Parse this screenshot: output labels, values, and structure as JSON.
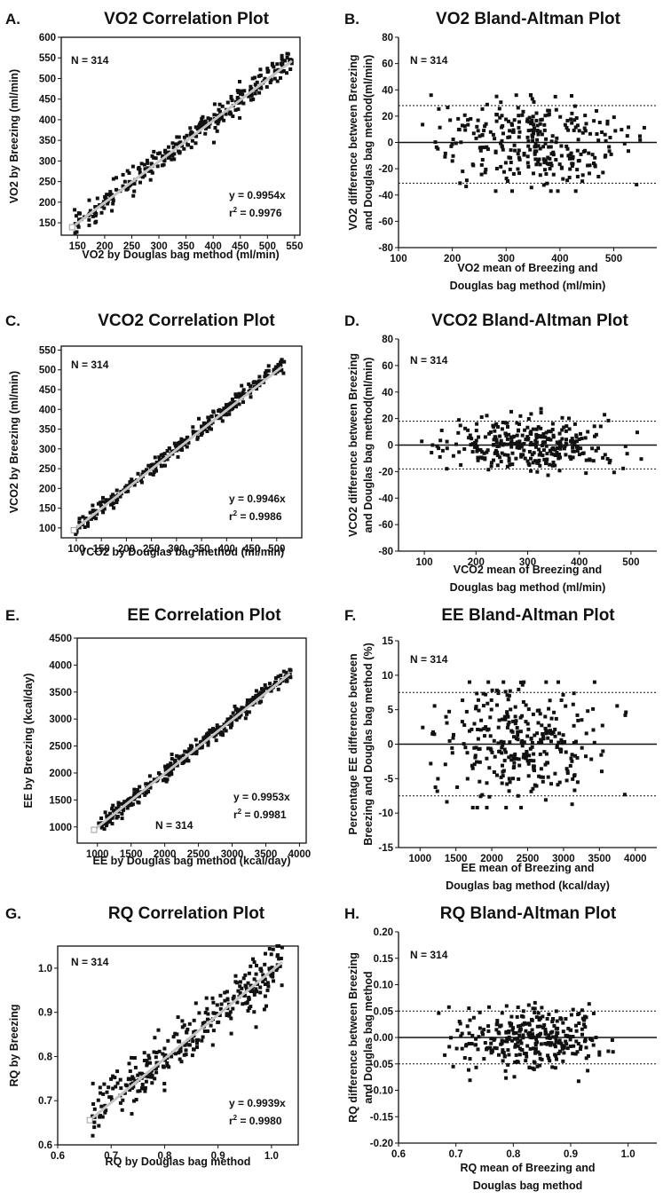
{
  "chart_data": [
    {
      "letter": "A.",
      "type": "scatter",
      "title": "VO2 Correlation Plot",
      "xlabel": [
        "VO2 by Douglas bag method (ml/min)"
      ],
      "ylabel": [
        "VO2 by Breezing (ml/min)"
      ],
      "xlim": [
        120,
        560
      ],
      "ylim": [
        120,
        600
      ],
      "xticks": [
        150,
        200,
        250,
        300,
        350,
        400,
        450,
        500,
        550
      ],
      "yticks": [
        150,
        200,
        250,
        300,
        350,
        400,
        450,
        500,
        550,
        600
      ],
      "n_label": "N = 314",
      "eq": "y = 0.9954x",
      "r2": "0.9976",
      "fit_line": {
        "slope": 0.9954,
        "x": [
          140,
          545
        ]
      },
      "points": {
        "n": 314,
        "x_range": [
          142,
          545
        ],
        "y_ref": "x",
        "spread": 15,
        "seed": 11
      }
    },
    {
      "letter": "B.",
      "type": "scatter",
      "title": "VO2 Bland-Altman Plot",
      "xlabel": [
        "VO2 mean of Breezing and",
        "Douglas bag method (ml/min)"
      ],
      "ylabel": [
        "VO2 difference between Breezing",
        "and Douglas bag method(ml/min)"
      ],
      "xlim": [
        100,
        580
      ],
      "ylim": [
        -80,
        80
      ],
      "xticks": [
        100,
        200,
        300,
        400,
        500
      ],
      "yticks": [
        -80,
        -60,
        -40,
        -20,
        0,
        20,
        40,
        60,
        80
      ],
      "n_label": "N = 314",
      "ref_lines": {
        "mean": 0,
        "upper": 28,
        "lower": -31
      },
      "points": {
        "n": 314,
        "x_range": [
          140,
          560
        ],
        "y_center": 0,
        "spread": 17,
        "y_clip": [
          -37,
          36
        ],
        "seed": 22
      }
    },
    {
      "letter": "C.",
      "type": "scatter",
      "title": "VCO2 Correlation Plot",
      "xlabel": [
        "VCO2 by Douglas bag method (ml/min)"
      ],
      "ylabel": [
        "VCO2 by Breezing (ml/min)"
      ],
      "xlim": [
        70,
        550
      ],
      "ylim": [
        75,
        560
      ],
      "xticks": [
        100,
        150,
        200,
        250,
        300,
        350,
        400,
        450,
        500
      ],
      "yticks": [
        100,
        150,
        200,
        250,
        300,
        350,
        400,
        450,
        500,
        550
      ],
      "n_label": "N = 314",
      "eq": "y = 0.9946x",
      "r2": "0.9986",
      "fit_line": {
        "slope": 0.9946,
        "x": [
          95,
          510
        ]
      },
      "points": {
        "n": 314,
        "x_range": [
          95,
          515
        ],
        "y_ref": "x",
        "spread": 10,
        "seed": 33
      }
    },
    {
      "letter": "D.",
      "type": "scatter",
      "title": "VCO2 Bland-Altman Plot",
      "xlabel": [
        "VCO2 mean of Breezing and",
        "Douglas bag method (ml/min)"
      ],
      "ylabel": [
        "VCO2 difference between Breezing",
        "and Douglas bag method(ml/min)"
      ],
      "xlim": [
        50,
        550
      ],
      "ylim": [
        -80,
        80
      ],
      "xticks": [
        100,
        200,
        300,
        400,
        500
      ],
      "yticks": [
        -80,
        -60,
        -40,
        -20,
        0,
        20,
        40,
        60,
        80
      ],
      "n_label": "N = 314",
      "ref_lines": {
        "mean": 0,
        "upper": 18,
        "lower": -18
      },
      "points": {
        "n": 314,
        "x_range": [
          95,
          520
        ],
        "y_center": 0,
        "spread": 10,
        "y_clip": [
          -31,
          33
        ],
        "seed": 44
      }
    },
    {
      "letter": "E.",
      "type": "scatter",
      "title": "EE Correlation Plot",
      "xlabel": [
        "EE by Douglas bag method (kcal/day)"
      ],
      "ylabel": [
        "EE by Breezing (kcal/day)"
      ],
      "xlim": [
        700,
        4100
      ],
      "ylim": [
        700,
        4500
      ],
      "xticks": [
        1000,
        1500,
        2000,
        2500,
        3000,
        3500,
        4000
      ],
      "yticks": [
        1000,
        1500,
        2000,
        2500,
        3000,
        3500,
        4000,
        4500
      ],
      "n_label": "N = 314",
      "eq": "y = 0.9953x",
      "r2": "0.9981",
      "fit_line": {
        "slope": 0.9953,
        "x": [
          950,
          3860
        ]
      },
      "points": {
        "n": 314,
        "x_range": [
          950,
          3870
        ],
        "y_ref": "x",
        "spread": 75,
        "seed": 55
      }
    },
    {
      "letter": "F.",
      "type": "scatter",
      "title": "EE Bland-Altman Plot",
      "xlabel": [
        "EE mean of Breezing and",
        "Douglas bag method (kcal/day)"
      ],
      "ylabel": [
        "Percentage EE difference between",
        "Breezing and Douglas bag method (%)"
      ],
      "xlim": [
        700,
        4300
      ],
      "ylim": [
        -15,
        15
      ],
      "xticks": [
        1000,
        1500,
        2000,
        2500,
        3000,
        3500,
        4000
      ],
      "yticks": [
        -15,
        -10,
        -5,
        0,
        5,
        10,
        15
      ],
      "n_label": "N = 314",
      "ref_lines": {
        "mean": 0,
        "upper": 7.5,
        "lower": -7.5
      },
      "points": {
        "n": 314,
        "x_range": [
          950,
          3870
        ],
        "y_center": 0,
        "spread": 4.2,
        "y_clip": [
          -9.2,
          9
        ],
        "seed": 66
      }
    },
    {
      "letter": "G.",
      "type": "scatter",
      "title": "RQ Correlation Plot",
      "xlabel": [
        "RQ by Douglas bag method"
      ],
      "ylabel": [
        "RQ by Breezing"
      ],
      "xlim": [
        0.6,
        1.05
      ],
      "ylim": [
        0.6,
        1.05
      ],
      "xticks": [
        0.6,
        0.7,
        0.8,
        0.9,
        1.0
      ],
      "yticks": [
        0.6,
        0.7,
        0.8,
        0.9,
        1.0
      ],
      "n_label": "N = 314",
      "eq": "y = 0.9939x",
      "r2": "0.9980",
      "fit_line": {
        "slope": 0.9939,
        "x": [
          0.66,
          1.02
        ]
      },
      "points": {
        "n": 314,
        "x_range": [
          0.665,
          1.02
        ],
        "y_ref": "x",
        "spread": 0.028,
        "seed": 77
      }
    },
    {
      "letter": "H.",
      "type": "scatter",
      "title": "RQ Bland-Altman Plot",
      "xlabel": [
        "RQ mean of Breezing and",
        "Douglas bag method"
      ],
      "ylabel": [
        "RQ difference between Breezing",
        "and Douglas bag method"
      ],
      "xlim": [
        0.6,
        1.05
      ],
      "ylim": [
        -0.2,
        0.2
      ],
      "xticks": [
        0.6,
        0.7,
        0.8,
        0.9,
        1.0
      ],
      "yticks": [
        -0.2,
        -0.15,
        -0.1,
        -0.05,
        0.0,
        0.05,
        0.1,
        0.15,
        0.2
      ],
      "n_label": "N = 314",
      "ref_lines": {
        "mean": 0,
        "upper": 0.05,
        "lower": -0.05
      },
      "points": {
        "n": 314,
        "x_range": [
          0.67,
          1.0
        ],
        "y_center": 0,
        "spread": 0.03,
        "y_clip": [
          -0.095,
          0.085
        ],
        "seed": 88
      }
    }
  ]
}
